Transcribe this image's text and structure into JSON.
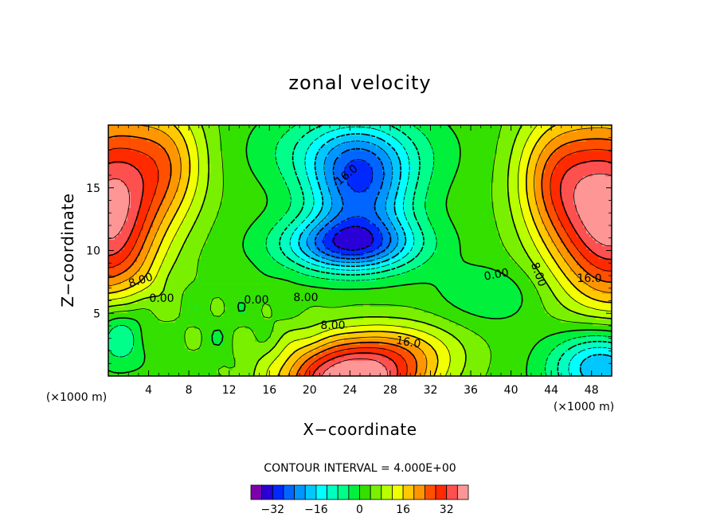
{
  "chart_data": {
    "type": "heatmap",
    "title": "zonal velocity",
    "xlabel": "X−coordinate",
    "ylabel": "Z−coordinate",
    "x_multiplier_label": "(×1000 m)",
    "xlim": [
      0,
      50
    ],
    "ylim": [
      0,
      20
    ],
    "x_ticks": [
      4,
      8,
      12,
      16,
      20,
      24,
      28,
      32,
      36,
      40,
      44,
      48
    ],
    "y_ticks": [
      5,
      10,
      15
    ],
    "contour_interval_label": "CONTOUR INTERVAL = 4.000E+00",
    "contour_interval": 4.0,
    "contour_labels": [
      "16.0",
      "8.00",
      "0.00",
      "0.00",
      "8.00",
      "8.00",
      "16.0",
      "0.00",
      "8.00",
      "16.0"
    ],
    "value_range": [
      -40,
      40
    ],
    "colorbar": {
      "levels": [
        -40,
        -36,
        -32,
        -28,
        -24,
        -20,
        -16,
        -12,
        -8,
        -4,
        0,
        4,
        8,
        12,
        16,
        20,
        24,
        28,
        32,
        36,
        40
      ],
      "tick_values": [
        -32,
        -16,
        0,
        16,
        32
      ],
      "tick_labels": [
        "−32",
        "−16",
        "0",
        "16",
        "32"
      ],
      "colors": [
        "#7d00ad",
        "#2a00d6",
        "#0028ff",
        "#0066ff",
        "#0096ff",
        "#00c8ff",
        "#00ffff",
        "#00ffc0",
        "#00ff8a",
        "#00f03c",
        "#33e000",
        "#79f000",
        "#b8ff00",
        "#f2ff00",
        "#ffc800",
        "#ff9600",
        "#ff5000",
        "#ff2a00",
        "#ff5050",
        "#ff9696"
      ]
    },
    "features": [
      {
        "name": "surface-left-jet",
        "x": 1.5,
        "z": 13,
        "value": 36
      },
      {
        "name": "surface-right-jet",
        "x": 49,
        "z": 12,
        "value": 36
      },
      {
        "name": "bottom-center-max",
        "x": 24,
        "z": 0.5,
        "value": 38
      },
      {
        "name": "upper-min",
        "x": 24,
        "z": 11,
        "value": -28
      },
      {
        "name": "lower-right-min",
        "x": 48,
        "z": 1,
        "value": -20
      },
      {
        "name": "lower-left-min",
        "x": 1,
        "z": 3,
        "value": -12
      }
    ]
  }
}
